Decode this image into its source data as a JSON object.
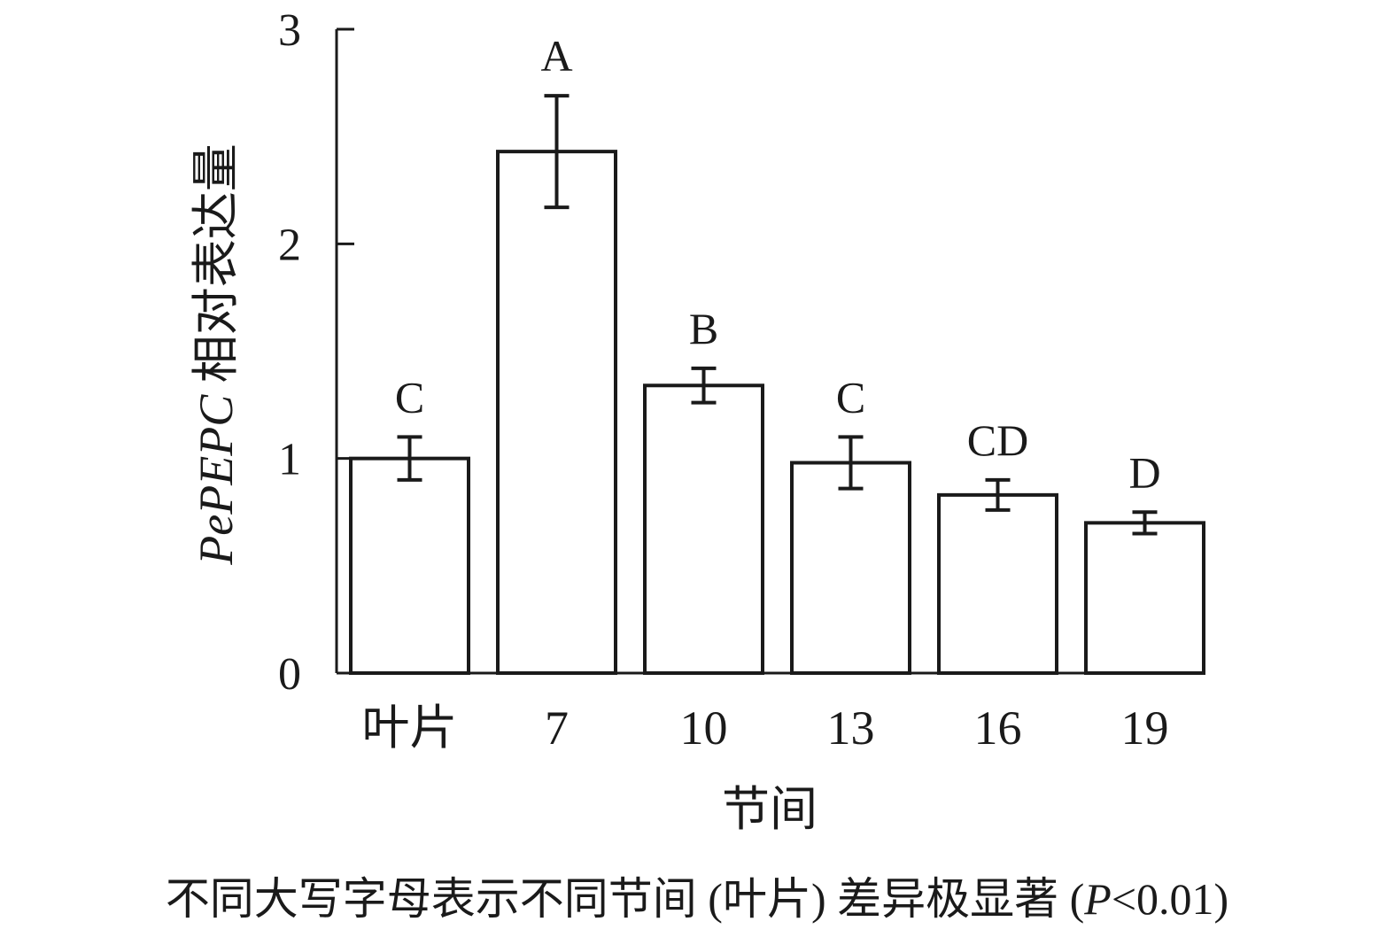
{
  "chart_data": {
    "type": "bar",
    "categories": [
      "叶片",
      "7",
      "10",
      "13",
      "16",
      "19"
    ],
    "values": [
      1.0,
      2.43,
      1.34,
      0.98,
      0.83,
      0.7
    ],
    "errors": [
      0.1,
      0.26,
      0.08,
      0.12,
      0.07,
      0.05
    ],
    "significance": [
      "C",
      "A",
      "B",
      "C",
      "CD",
      "D"
    ],
    "ylim": [
      0,
      3
    ],
    "yticks": [
      0,
      1,
      2,
      3
    ],
    "ytick_labels": [
      "0",
      "1",
      "2",
      "3"
    ],
    "xlabel": "节间",
    "ylabel_gene": "PePEPC",
    "ylabel_rest": " 相对表达量",
    "grid": false,
    "legend": "none"
  },
  "footnote": {
    "prefix": "不同大写字母表示不同节间 (叶片) 差异极显著 (",
    "pvar": "P",
    "suffix": "<0.01)"
  }
}
